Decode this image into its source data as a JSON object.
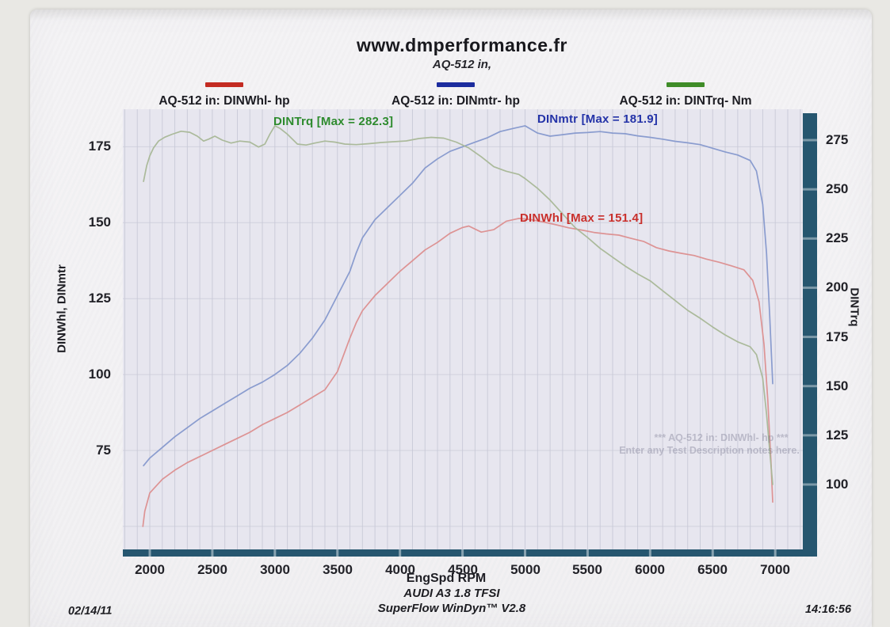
{
  "header": {
    "site_title": "www.dmperformance.fr",
    "run_subtitle": "AQ-512 in,"
  },
  "annotations": {
    "dintrq_max": "DINTrq [Max = 282.3]",
    "dinmtr_max": "DINmtr [Max = 181.9]",
    "dinwhl_max": "DINWhl [Max = 151.4]"
  },
  "watermark": {
    "line1": "*** AQ-512 in: DINWhl- hp ***",
    "line2": "Enter any Test Description notes here."
  },
  "footer": {
    "vehicle": "AUDI A3 1.8 TFSI",
    "software": "SuperFlow WinDyn™ V2.8",
    "date": "02/14/11",
    "time": "14:16:56"
  },
  "chart_data": {
    "type": "line",
    "title": "www.dmperformance.fr",
    "subtitle": "AQ-512 in,",
    "legend_position": "top",
    "grid": {
      "vertical_step_rpm": 100,
      "horizontal_step_hp": 25,
      "on": true
    },
    "x_axis": {
      "label": "EngSpd  RPM",
      "min": 1785,
      "max": 7220,
      "ticks": [
        2000,
        2500,
        3000,
        3500,
        4000,
        4500,
        5000,
        5500,
        6000,
        6500,
        7000
      ]
    },
    "y_axis_left": {
      "label": "DINWhl, DINmtr",
      "min": 41,
      "max": 187,
      "ticks": [
        175,
        150,
        125,
        100,
        75
      ]
    },
    "y_axis_right": {
      "label": "DINTrq",
      "min": 64,
      "max": 290,
      "ticks": [
        275,
        250,
        225,
        200,
        175,
        150,
        125,
        100
      ]
    },
    "axis_bar_color": "#26566f",
    "series": [
      {
        "name": "AQ-512 in: DINWhl-  hp",
        "id": "dinwhl",
        "axis": "left",
        "unit": "hp",
        "max_value": 151.4,
        "legend_color": "#c32b22",
        "curve_color": "#dc8e8e",
        "points": [
          [
            1945,
            50
          ],
          [
            1960,
            55
          ],
          [
            2000,
            61
          ],
          [
            2100,
            65.5
          ],
          [
            2200,
            68.5
          ],
          [
            2300,
            71
          ],
          [
            2400,
            73
          ],
          [
            2500,
            75
          ],
          [
            2600,
            77
          ],
          [
            2700,
            79
          ],
          [
            2800,
            81
          ],
          [
            2900,
            83.5
          ],
          [
            3000,
            85.5
          ],
          [
            3100,
            87.5
          ],
          [
            3200,
            90
          ],
          [
            3300,
            92.5
          ],
          [
            3400,
            95
          ],
          [
            3500,
            101
          ],
          [
            3600,
            112
          ],
          [
            3650,
            117
          ],
          [
            3700,
            121
          ],
          [
            3800,
            126
          ],
          [
            3900,
            130
          ],
          [
            4000,
            134
          ],
          [
            4100,
            137.5
          ],
          [
            4200,
            141
          ],
          [
            4300,
            143.5
          ],
          [
            4400,
            146.5
          ],
          [
            4500,
            148.4
          ],
          [
            4550,
            148.9
          ],
          [
            4650,
            146.9
          ],
          [
            4750,
            147.7
          ],
          [
            4850,
            150.5
          ],
          [
            4950,
            151.4
          ],
          [
            5050,
            151
          ],
          [
            5150,
            150.2
          ],
          [
            5250,
            149.3
          ],
          [
            5350,
            148.3
          ],
          [
            5450,
            147.6
          ],
          [
            5550,
            146.8
          ],
          [
            5650,
            146.3
          ],
          [
            5750,
            145.9
          ],
          [
            5850,
            144.8
          ],
          [
            5950,
            143.8
          ],
          [
            6050,
            141.8
          ],
          [
            6150,
            140.7
          ],
          [
            6250,
            139.9
          ],
          [
            6350,
            139.2
          ],
          [
            6450,
            138
          ],
          [
            6550,
            137
          ],
          [
            6650,
            135.8
          ],
          [
            6750,
            134.5
          ],
          [
            6820,
            131
          ],
          [
            6870,
            124
          ],
          [
            6910,
            110
          ],
          [
            6940,
            92
          ],
          [
            6965,
            72
          ],
          [
            6980,
            58
          ]
        ]
      },
      {
        "name": "AQ-512 in: DINmtr-  hp",
        "id": "dinmtr",
        "axis": "left",
        "unit": "hp",
        "max_value": 181.9,
        "legend_color": "#1c2c9e",
        "curve_color": "#8598cc",
        "points": [
          [
            1950,
            70
          ],
          [
            2000,
            72.5
          ],
          [
            2100,
            76
          ],
          [
            2200,
            79.5
          ],
          [
            2300,
            82.5
          ],
          [
            2400,
            85.5
          ],
          [
            2500,
            88
          ],
          [
            2600,
            90.5
          ],
          [
            2700,
            93
          ],
          [
            2800,
            95.5
          ],
          [
            2900,
            97.5
          ],
          [
            3000,
            100
          ],
          [
            3100,
            103
          ],
          [
            3200,
            107
          ],
          [
            3300,
            112
          ],
          [
            3400,
            118
          ],
          [
            3500,
            126
          ],
          [
            3600,
            134
          ],
          [
            3650,
            140
          ],
          [
            3700,
            145
          ],
          [
            3800,
            151
          ],
          [
            3900,
            155
          ],
          [
            4000,
            159
          ],
          [
            4100,
            163
          ],
          [
            4200,
            168
          ],
          [
            4300,
            171
          ],
          [
            4400,
            173.5
          ],
          [
            4500,
            175
          ],
          [
            4600,
            176.5
          ],
          [
            4700,
            178
          ],
          [
            4800,
            180
          ],
          [
            4900,
            181
          ],
          [
            5000,
            181.9
          ],
          [
            5100,
            179.5
          ],
          [
            5200,
            178.5
          ],
          [
            5300,
            179
          ],
          [
            5400,
            179.5
          ],
          [
            5500,
            179.7
          ],
          [
            5600,
            180
          ],
          [
            5700,
            179.5
          ],
          [
            5800,
            179.3
          ],
          [
            5900,
            178.6
          ],
          [
            6000,
            178.1
          ],
          [
            6100,
            177.5
          ],
          [
            6200,
            176.8
          ],
          [
            6300,
            176.3
          ],
          [
            6400,
            175.7
          ],
          [
            6500,
            174.5
          ],
          [
            6600,
            173.3
          ],
          [
            6700,
            172.3
          ],
          [
            6800,
            170.5
          ],
          [
            6850,
            167
          ],
          [
            6900,
            156
          ],
          [
            6930,
            140
          ],
          [
            6955,
            120
          ],
          [
            6980,
            97
          ]
        ]
      },
      {
        "name": "AQ-512 in: DINTrq-  Nm",
        "id": "dintrq",
        "axis": "right",
        "unit": "Nm",
        "max_value": 282.3,
        "legend_color": "#3f8c28",
        "curve_color": "#a8b796",
        "points": [
          [
            1950,
            254
          ],
          [
            1975,
            262
          ],
          [
            2000,
            267
          ],
          [
            2030,
            271
          ],
          [
            2070,
            274.5
          ],
          [
            2120,
            276.5
          ],
          [
            2180,
            278
          ],
          [
            2250,
            279.5
          ],
          [
            2320,
            279
          ],
          [
            2380,
            277
          ],
          [
            2430,
            274.5
          ],
          [
            2470,
            275.5
          ],
          [
            2520,
            277
          ],
          [
            2580,
            275
          ],
          [
            2650,
            273.5
          ],
          [
            2720,
            274.5
          ],
          [
            2800,
            274
          ],
          [
            2870,
            271.5
          ],
          [
            2920,
            273
          ],
          [
            2960,
            278
          ],
          [
            3000,
            282.3
          ],
          [
            3040,
            281
          ],
          [
            3100,
            278
          ],
          [
            3180,
            273
          ],
          [
            3250,
            272.5
          ],
          [
            3320,
            273.5
          ],
          [
            3400,
            274.5
          ],
          [
            3480,
            274
          ],
          [
            3560,
            273
          ],
          [
            3650,
            272.7
          ],
          [
            3750,
            273.2
          ],
          [
            3850,
            273.8
          ],
          [
            3950,
            274.2
          ],
          [
            4050,
            274.6
          ],
          [
            4150,
            275.8
          ],
          [
            4250,
            276.4
          ],
          [
            4350,
            276
          ],
          [
            4450,
            274
          ],
          [
            4550,
            271
          ],
          [
            4650,
            266.5
          ],
          [
            4750,
            261.5
          ],
          [
            4850,
            259.2
          ],
          [
            4950,
            257.6
          ],
          [
            5000,
            255.5
          ],
          [
            5100,
            250.5
          ],
          [
            5200,
            244.5
          ],
          [
            5300,
            237.5
          ],
          [
            5400,
            230.5
          ],
          [
            5500,
            225.5
          ],
          [
            5600,
            220
          ],
          [
            5700,
            215.5
          ],
          [
            5800,
            211
          ],
          [
            5900,
            207
          ],
          [
            6000,
            203.5
          ],
          [
            6100,
            198.5
          ],
          [
            6200,
            193.5
          ],
          [
            6300,
            188.5
          ],
          [
            6400,
            184.5
          ],
          [
            6500,
            180
          ],
          [
            6600,
            176
          ],
          [
            6700,
            172.5
          ],
          [
            6800,
            170
          ],
          [
            6850,
            166
          ],
          [
            6900,
            154
          ],
          [
            6930,
            136
          ],
          [
            6960,
            114
          ],
          [
            6980,
            100
          ]
        ]
      }
    ]
  }
}
